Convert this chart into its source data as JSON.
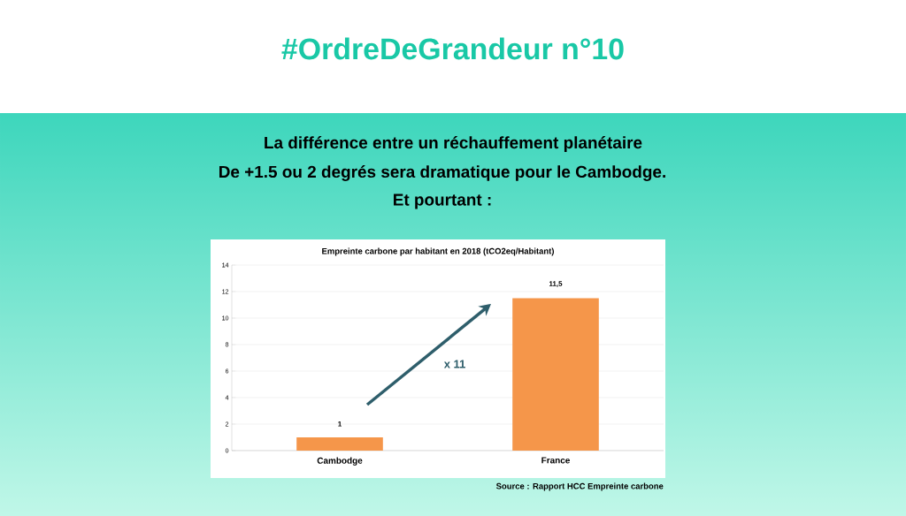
{
  "chart_data": {
    "type": "bar",
    "title": "Empreinte carbone par habitant en 2018 (tCO2eq/Habitant)",
    "categories": [
      "Cambodge",
      "France"
    ],
    "values": [
      1,
      11.5
    ],
    "color": "#f5964a",
    "value_labels": [
      "1",
      "11,5"
    ],
    "ylim": [
      0,
      14
    ],
    "yticks": [
      0,
      2,
      4,
      6,
      8,
      10,
      12,
      14
    ],
    "grid": "y",
    "annotations": [
      "#OrdreDeGrandeur n°10",
      "La différence entre un réchauffement planétaire",
      "De +1.5 ou 2 degrés sera dramatique pour le Cambodge.",
      "Et pourtant :",
      "x 11",
      "Source  : Rapport HCC Empreinte carbone"
    ]
  }
}
